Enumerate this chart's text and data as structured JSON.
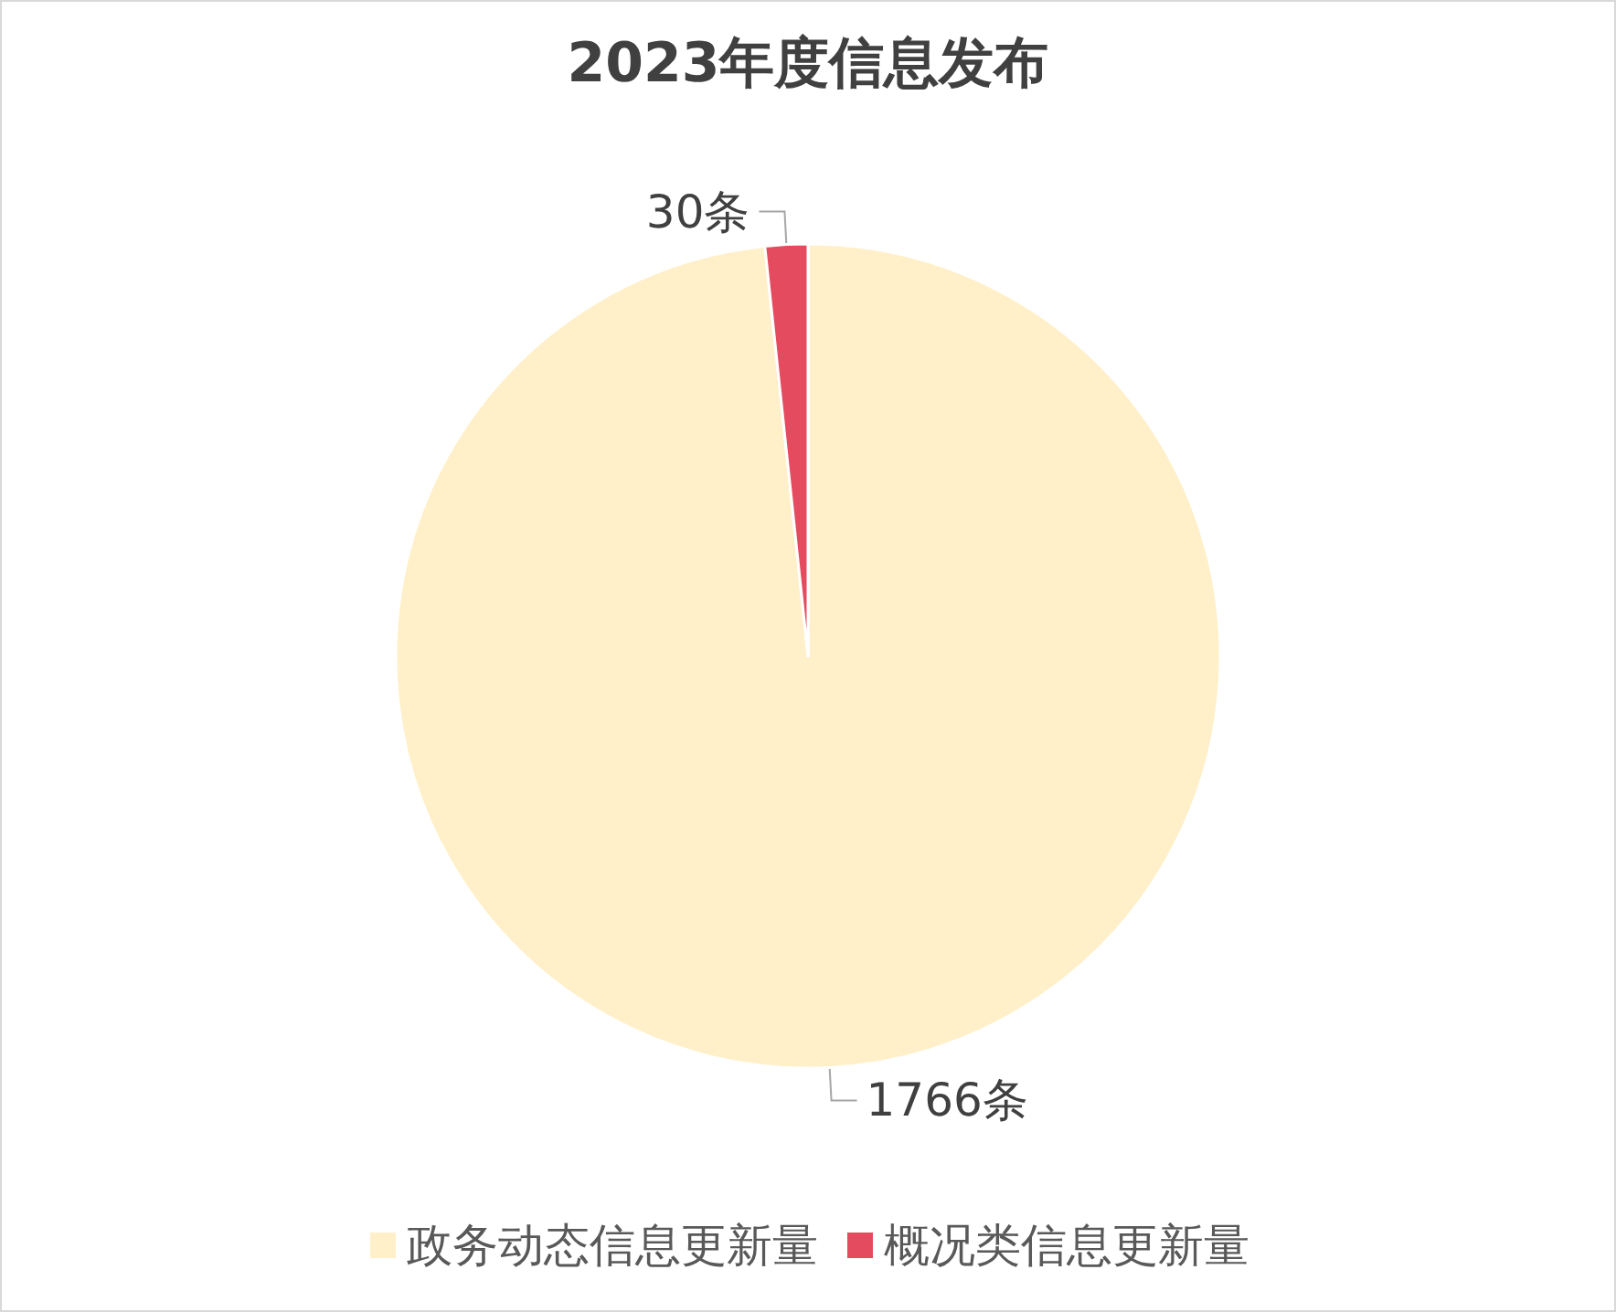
{
  "chart_data": {
    "type": "pie",
    "title": "2023年度信息发布",
    "categories": [
      "政务动态信息更新量",
      "概况类信息更新量"
    ],
    "values": [
      1766,
      30
    ],
    "colors": [
      "#fff0c9",
      "#e54b5e"
    ],
    "value_labels": [
      "1766条",
      "30条"
    ],
    "legend": "bottom"
  }
}
